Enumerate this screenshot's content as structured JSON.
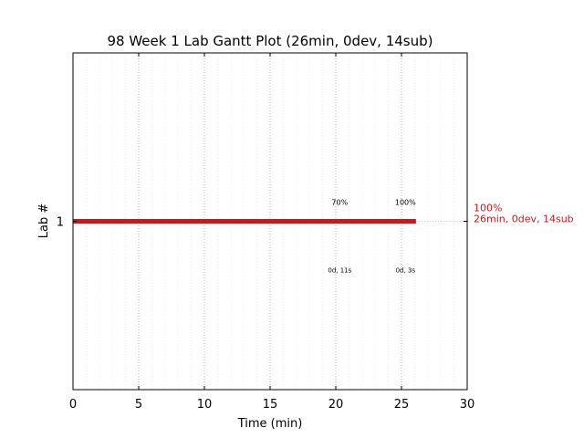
{
  "chart_data": {
    "type": "gantt",
    "title": "98 Week 1 Lab Gantt Plot (26min, 0dev, 14sub)",
    "xlabel": "Time (min)",
    "ylabel": "Lab #",
    "xlim": [
      0,
      30
    ],
    "xticks": [
      0,
      5,
      10,
      15,
      20,
      25,
      30
    ],
    "minor_xtick_step": 1,
    "y_categories": [
      "1"
    ],
    "grid": true,
    "bars": [
      {
        "lab": "1",
        "start": 0,
        "end": 26.1,
        "color": "#b22222"
      }
    ],
    "end_label": {
      "lab": "1",
      "line1": "100%",
      "line2": "26min, 0dev, 14sub",
      "color": "#b22222"
    },
    "milestones": [
      {
        "lab": "1",
        "x": 20.3,
        "percent_label": "70%",
        "time_label": "0d, 11s"
      },
      {
        "lab": "1",
        "x": 25.3,
        "percent_label": "100%",
        "time_label": "0d, 3s"
      }
    ]
  }
}
